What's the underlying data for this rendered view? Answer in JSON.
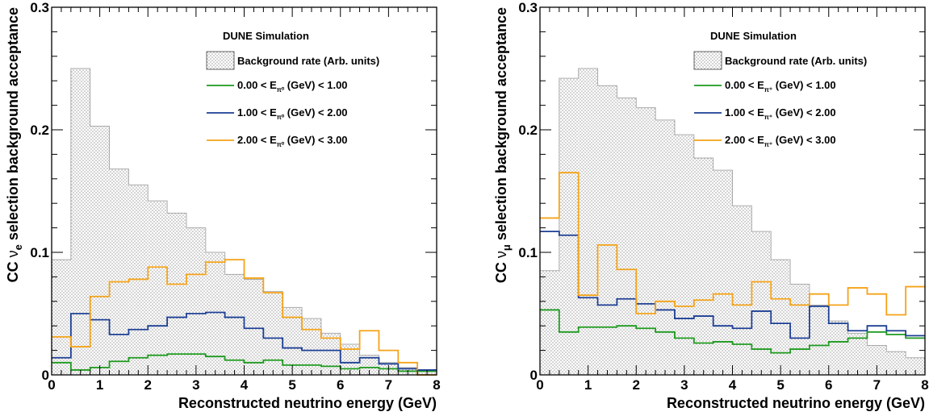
{
  "chart_data": [
    {
      "type": "histogram",
      "panel": "left",
      "xlabel": "Reconstructed neutrino energy (GeV)",
      "ylabel_prefix": "CC ",
      "ylabel_nu": "ν",
      "ylabel_sub": "e",
      "ylabel_suffix": " selection background acceptance",
      "xlim": [
        0,
        8
      ],
      "ylim": [
        0,
        0.3
      ],
      "x_ticks": [
        "0",
        "1",
        "2",
        "3",
        "4",
        "5",
        "6",
        "7",
        "8"
      ],
      "y_ticks": [
        "0",
        "0.1",
        "0.2",
        "0.3"
      ],
      "bin_edges": [
        0,
        0.4,
        0.8,
        1.2,
        1.6,
        2.0,
        2.4,
        2.8,
        3.2,
        3.6,
        4.0,
        4.4,
        4.8,
        5.2,
        5.6,
        6.0,
        6.4,
        6.8,
        7.2,
        7.6,
        8.0
      ],
      "legend": {
        "header": "DUNE Simulation",
        "background_label": "Background rate (Arb. units)",
        "entries": [
          {
            "pre": "0.00 < E",
            "sub": "π⁰",
            "post": " (GeV) < 1.00"
          },
          {
            "pre": "1.00 < E",
            "sub": "π⁰",
            "post": " (GeV) < 2.00"
          },
          {
            "pre": "2.00 < E",
            "sub": "π⁰",
            "post": " (GeV) < 3.00"
          }
        ]
      },
      "background": {
        "name": "Background rate (Arb. units)",
        "values": [
          0.094,
          0.25,
          0.203,
          0.168,
          0.155,
          0.142,
          0.132,
          0.12,
          0.1,
          0.082,
          0.078,
          0.068,
          0.055,
          0.046,
          0.034,
          0.025,
          0.016,
          0.01,
          0.006,
          0.003
        ]
      },
      "series": [
        {
          "name": "0.00 < E (GeV) < 1.00",
          "color": "#1e9a1e",
          "values": [
            0.01,
            0.004,
            0.006,
            0.011,
            0.014,
            0.016,
            0.017,
            0.017,
            0.015,
            0.012,
            0.01,
            0.012,
            0.008,
            0.008,
            0.007,
            0.005,
            0.006,
            0.005,
            0.003,
            0.003
          ]
        },
        {
          "name": "1.00 < E (GeV) < 2.00",
          "color": "#1c3f94",
          "values": [
            0.014,
            0.05,
            0.045,
            0.033,
            0.037,
            0.04,
            0.047,
            0.05,
            0.051,
            0.047,
            0.038,
            0.03,
            0.022,
            0.02,
            0.02,
            0.01,
            0.014,
            0.009,
            0.005,
            0.004
          ]
        },
        {
          "name": "2.00 < E (GeV) < 3.00",
          "color": "#f5a318",
          "values": [
            0.031,
            0.023,
            0.064,
            0.076,
            0.078,
            0.088,
            0.074,
            0.082,
            0.092,
            0.094,
            0.079,
            0.067,
            0.047,
            0.037,
            0.03,
            0.021,
            0.036,
            0.02,
            0.01,
            0.0
          ]
        }
      ]
    },
    {
      "type": "histogram",
      "panel": "right",
      "xlabel": "Reconstructed neutrino energy (GeV)",
      "ylabel_prefix": "CC ",
      "ylabel_nu": "ν",
      "ylabel_sub": "μ",
      "ylabel_suffix": " selection background acceptance",
      "xlim": [
        0,
        8
      ],
      "ylim": [
        0,
        0.3
      ],
      "x_ticks": [
        "0",
        "1",
        "2",
        "3",
        "4",
        "5",
        "6",
        "7",
        "8"
      ],
      "y_ticks": [
        "0",
        "0.1",
        "0.2",
        "0.3"
      ],
      "bin_edges": [
        0,
        0.4,
        0.8,
        1.2,
        1.6,
        2.0,
        2.4,
        2.8,
        3.2,
        3.6,
        4.0,
        4.4,
        4.8,
        5.2,
        5.6,
        6.0,
        6.4,
        6.8,
        7.2,
        7.6,
        8.0
      ],
      "legend": {
        "header": "DUNE Simulation",
        "background_label": "Background rate (Arb. units)",
        "entries": [
          {
            "pre": "0.00 < E",
            "sub": "π⁺",
            "post": " (GeV) < 1.00"
          },
          {
            "pre": "1.00 < E",
            "sub": "π⁺",
            "post": " (GeV) < 2.00"
          },
          {
            "pre": "2.00 < E",
            "sub": "π⁺",
            "post": " (GeV) < 3.00"
          }
        ]
      },
      "background": {
        "name": "Background rate (Arb. units)",
        "values": [
          0.085,
          0.242,
          0.25,
          0.236,
          0.226,
          0.218,
          0.208,
          0.196,
          0.177,
          0.167,
          0.138,
          0.117,
          0.094,
          0.074,
          0.057,
          0.044,
          0.034,
          0.024,
          0.019,
          0.014
        ]
      },
      "series": [
        {
          "name": "0.00 < E (GeV) < 1.00",
          "color": "#1e9a1e",
          "values": [
            0.053,
            0.035,
            0.039,
            0.039,
            0.04,
            0.038,
            0.035,
            0.03,
            0.026,
            0.027,
            0.025,
            0.021,
            0.018,
            0.021,
            0.024,
            0.027,
            0.03,
            0.035,
            0.033,
            0.03
          ]
        },
        {
          "name": "1.00 < E (GeV) < 2.00",
          "color": "#1c3f94",
          "values": [
            0.117,
            0.114,
            0.063,
            0.057,
            0.062,
            0.058,
            0.053,
            0.046,
            0.048,
            0.04,
            0.038,
            0.052,
            0.042,
            0.03,
            0.056,
            0.042,
            0.036,
            0.04,
            0.036,
            0.032
          ]
        },
        {
          "name": "2.00 < E (GeV) < 3.00",
          "color": "#f5a318",
          "values": [
            0.128,
            0.165,
            0.065,
            0.106,
            0.086,
            0.05,
            0.06,
            0.056,
            0.061,
            0.066,
            0.057,
            0.076,
            0.062,
            0.057,
            0.066,
            0.057,
            0.071,
            0.066,
            0.049,
            0.072
          ]
        }
      ]
    }
  ]
}
